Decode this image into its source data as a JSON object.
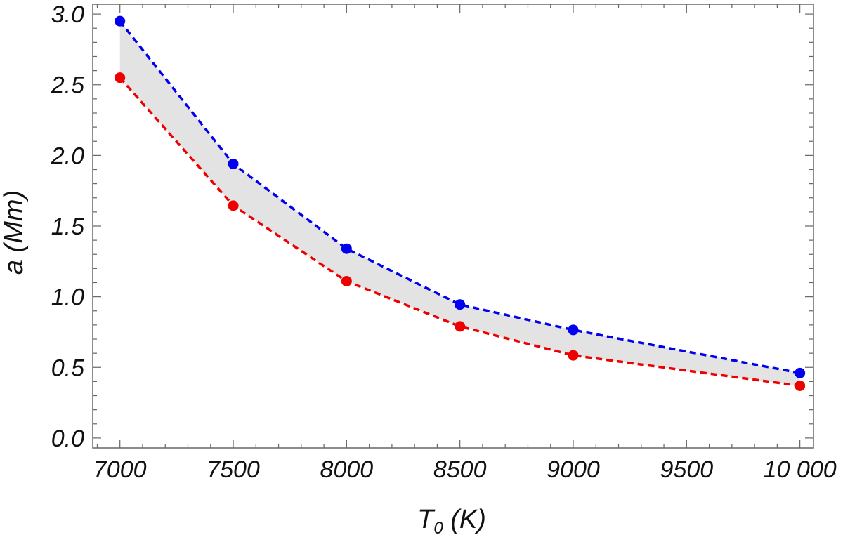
{
  "chart_data": {
    "type": "line",
    "title": "",
    "xlabel": {
      "main": "T",
      "sub": "0",
      "unit": " (K)"
    },
    "ylabel": {
      "main": "a",
      "unit": " (Mm)"
    },
    "xlim": [
      6880,
      10060
    ],
    "ylim": [
      -0.07,
      3.07
    ],
    "x_ticks": [
      {
        "value": 7000,
        "label": "7000"
      },
      {
        "value": 7500,
        "label": "7500"
      },
      {
        "value": 8000,
        "label": "8000"
      },
      {
        "value": 8500,
        "label": "8500"
      },
      {
        "value": 9000,
        "label": "9000"
      },
      {
        "value": 9500,
        "label": "9500"
      },
      {
        "value": 10000,
        "label": "10 000"
      }
    ],
    "y_ticks": [
      {
        "value": 0.0,
        "label": "0.0"
      },
      {
        "value": 0.5,
        "label": "0.5"
      },
      {
        "value": 1.0,
        "label": "1.0"
      },
      {
        "value": 1.5,
        "label": "1.5"
      },
      {
        "value": 2.0,
        "label": "2.0"
      },
      {
        "value": 2.5,
        "label": "2.5"
      },
      {
        "value": 3.0,
        "label": "3.0"
      }
    ],
    "x": [
      7000,
      7500,
      8000,
      8500,
      9000,
      10000
    ],
    "series": [
      {
        "values": [
          2.95,
          1.94,
          1.34,
          0.945,
          0.765,
          0.46
        ],
        "color": "#0000ee",
        "style": "dashed",
        "markers": true
      },
      {
        "values": [
          2.55,
          1.645,
          1.11,
          0.79,
          0.585,
          0.37
        ],
        "color": "#ee0000",
        "style": "dashed",
        "markers": true
      }
    ],
    "fill_between": {
      "color": "#e3e3e3"
    },
    "grid": false,
    "legend": "none"
  }
}
